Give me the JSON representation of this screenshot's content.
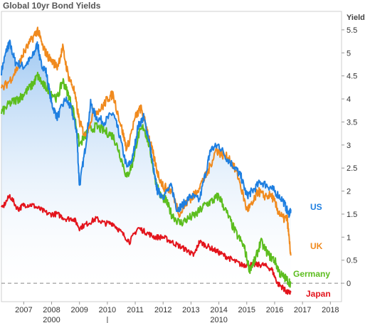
{
  "chart_data": {
    "type": "line",
    "title": "Global 10yr Bond Yields",
    "ylabel": "Yield",
    "xlim": [
      2006.2,
      2018.4
    ],
    "ylim": [
      -0.4,
      5.9
    ],
    "yticks": [
      0,
      0.5,
      1,
      1.5,
      2,
      2.5,
      3,
      3.5,
      4,
      4.5,
      5,
      5.5
    ],
    "xticks": [
      2007,
      2008,
      2009,
      2010,
      2011,
      2012,
      2013,
      2014,
      2015,
      2016,
      2017,
      2018
    ],
    "secondary_x_labels": [
      {
        "x": 2008.0,
        "label": "2000"
      },
      {
        "x": 2010.0,
        "label": "|"
      },
      {
        "x": 2014.0,
        "label": "2010"
      }
    ],
    "zero_line": true,
    "grid": false,
    "series": [
      {
        "name": "US",
        "color": "#1f7fe0",
        "x": [
          2006.2,
          2006.4,
          2006.5,
          2006.7,
          2007.0,
          2007.3,
          2007.5,
          2007.6,
          2007.8,
          2008.0,
          2008.2,
          2008.5,
          2008.7,
          2008.9,
          2009.0,
          2009.2,
          2009.4,
          2009.6,
          2009.9,
          2010.2,
          2010.4,
          2010.7,
          2010.9,
          2011.1,
          2011.3,
          2011.5,
          2011.7,
          2011.8,
          2012.0,
          2012.3,
          2012.5,
          2012.7,
          2013.0,
          2013.3,
          2013.6,
          2013.7,
          2014.0,
          2014.3,
          2014.6,
          2014.8,
          2015.0,
          2015.2,
          2015.5,
          2015.8,
          2016.0,
          2016.3,
          2016.5,
          2016.58
        ],
        "values": [
          4.6,
          5.1,
          5.2,
          4.8,
          4.7,
          4.9,
          5.2,
          4.8,
          4.6,
          3.9,
          3.6,
          4.0,
          3.8,
          3.3,
          2.1,
          2.9,
          3.9,
          3.6,
          3.5,
          3.7,
          3.3,
          2.5,
          2.7,
          3.4,
          3.6,
          3.1,
          2.3,
          2.0,
          1.9,
          2.1,
          1.6,
          1.7,
          1.9,
          1.8,
          2.6,
          2.9,
          3.0,
          2.7,
          2.5,
          2.3,
          1.9,
          2.0,
          2.2,
          2.1,
          2.0,
          1.8,
          1.5,
          1.6
        ]
      },
      {
        "name": "UK",
        "color": "#f08a1e",
        "x": [
          2006.2,
          2006.5,
          2006.8,
          2007.0,
          2007.3,
          2007.5,
          2007.7,
          2007.9,
          2008.2,
          2008.4,
          2008.6,
          2008.8,
          2009.0,
          2009.2,
          2009.5,
          2009.8,
          2010.0,
          2010.2,
          2010.5,
          2010.7,
          2011.0,
          2011.2,
          2011.4,
          2011.6,
          2011.8,
          2012.0,
          2012.3,
          2012.6,
          2012.9,
          2013.1,
          2013.4,
          2013.6,
          2013.9,
          2014.1,
          2014.4,
          2014.7,
          2015.0,
          2015.2,
          2015.4,
          2015.6,
          2015.9,
          2016.1,
          2016.3,
          2016.45,
          2016.58
        ],
        "values": [
          4.2,
          4.4,
          4.7,
          5.0,
          5.3,
          5.5,
          5.1,
          4.9,
          4.7,
          5.1,
          4.5,
          4.2,
          3.5,
          3.2,
          3.7,
          3.8,
          4.0,
          4.1,
          3.4,
          2.9,
          3.6,
          3.8,
          3.4,
          2.9,
          2.4,
          2.1,
          2.0,
          1.5,
          1.8,
          1.9,
          2.2,
          2.4,
          2.9,
          2.8,
          2.7,
          2.3,
          1.6,
          1.7,
          2.0,
          1.9,
          1.9,
          1.6,
          1.4,
          1.4,
          0.6
        ]
      },
      {
        "name": "Germany",
        "color": "#5cbd1e",
        "x": [
          2006.2,
          2006.5,
          2006.8,
          2007.0,
          2007.3,
          2007.5,
          2007.7,
          2007.9,
          2008.2,
          2008.4,
          2008.6,
          2008.8,
          2009.0,
          2009.3,
          2009.6,
          2009.9,
          2010.2,
          2010.4,
          2010.7,
          2010.9,
          2011.1,
          2011.3,
          2011.5,
          2011.7,
          2011.9,
          2012.1,
          2012.3,
          2012.6,
          2012.9,
          2013.2,
          2013.5,
          2013.8,
          2014.0,
          2014.3,
          2014.6,
          2014.9,
          2015.1,
          2015.3,
          2015.5,
          2015.8,
          2016.0,
          2016.2,
          2016.4,
          2016.58
        ],
        "values": [
          3.7,
          3.9,
          4.0,
          4.1,
          4.3,
          4.5,
          4.3,
          4.2,
          4.0,
          4.4,
          4.1,
          3.7,
          3.0,
          3.3,
          3.4,
          3.3,
          3.2,
          2.9,
          2.3,
          2.6,
          3.2,
          3.4,
          3.0,
          2.3,
          1.9,
          1.8,
          1.5,
          1.3,
          1.4,
          1.5,
          1.7,
          1.8,
          1.9,
          1.5,
          1.1,
          0.8,
          0.3,
          0.5,
          0.9,
          0.6,
          0.5,
          0.2,
          0.1,
          0.0
        ]
      },
      {
        "name": "Japan",
        "color": "#e3141c",
        "x": [
          2006.2,
          2006.5,
          2006.8,
          2007.0,
          2007.3,
          2007.6,
          2007.9,
          2008.2,
          2008.5,
          2008.8,
          2009.0,
          2009.3,
          2009.6,
          2009.9,
          2010.2,
          2010.5,
          2010.8,
          2011.1,
          2011.4,
          2011.7,
          2012.0,
          2012.3,
          2012.6,
          2012.9,
          2013.1,
          2013.3,
          2013.6,
          2013.9,
          2014.2,
          2014.5,
          2014.8,
          2015.0,
          2015.3,
          2015.6,
          2015.9,
          2016.1,
          2016.3,
          2016.45,
          2016.58
        ],
        "values": [
          1.6,
          1.9,
          1.6,
          1.7,
          1.7,
          1.6,
          1.5,
          1.5,
          1.4,
          1.4,
          1.2,
          1.3,
          1.4,
          1.3,
          1.3,
          1.1,
          0.9,
          1.2,
          1.1,
          1.0,
          1.0,
          0.9,
          0.8,
          0.7,
          0.6,
          0.9,
          0.8,
          0.7,
          0.6,
          0.5,
          0.4,
          0.4,
          0.4,
          0.4,
          0.3,
          0.0,
          -0.1,
          -0.2,
          -0.2
        ]
      }
    ]
  }
}
